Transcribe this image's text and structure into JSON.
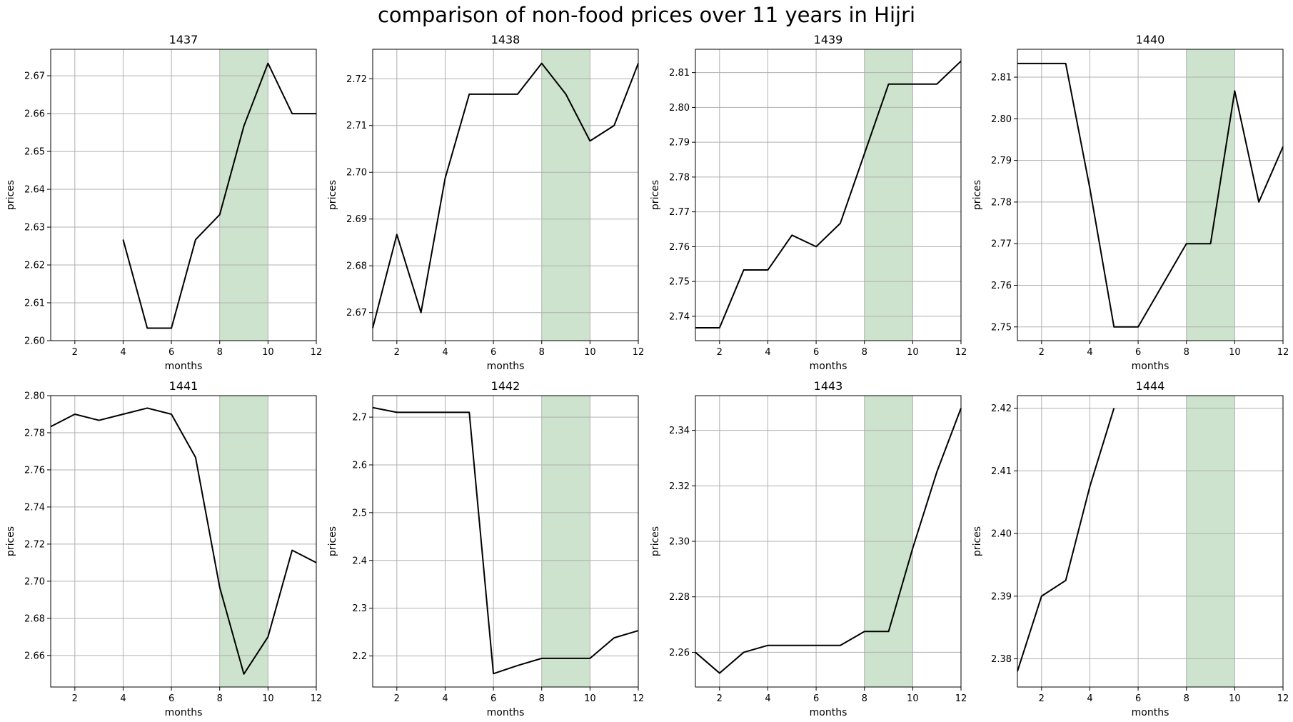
{
  "figure": {
    "title": "comparison of non-food prices over 11 years in Hijri",
    "line_color": "#000000",
    "highlight_color": "#2e8b2e",
    "grid_color": "#b0b0b0"
  },
  "chart_data": [
    {
      "type": "line",
      "title": "1437",
      "xlabel": "months",
      "ylabel": "prices",
      "xlim": [
        1,
        12
      ],
      "ylim": [
        2.6,
        2.677
      ],
      "xticks": [
        2,
        4,
        6,
        8,
        10,
        12
      ],
      "yticks": [
        2.6,
        2.61,
        2.62,
        2.63,
        2.64,
        2.65,
        2.66,
        2.67
      ],
      "ytick_labels": [
        "2.60",
        "2.61",
        "2.62",
        "2.63",
        "2.64",
        "2.65",
        "2.66",
        "2.67"
      ],
      "highlight": [
        8,
        10
      ],
      "grid": true,
      "x": [
        4,
        5,
        6,
        7,
        8,
        9,
        10,
        11,
        12
      ],
      "values": [
        2.6267,
        2.6033,
        2.6033,
        2.6267,
        2.6333,
        2.6567,
        2.6733,
        2.66,
        2.66
      ]
    },
    {
      "type": "line",
      "title": "1438",
      "xlabel": "months",
      "ylabel": "prices",
      "xlim": [
        1,
        12
      ],
      "ylim": [
        2.664,
        2.7263
      ],
      "xticks": [
        2,
        4,
        6,
        8,
        10,
        12
      ],
      "yticks": [
        2.67,
        2.68,
        2.69,
        2.7,
        2.71,
        2.72
      ],
      "ytick_labels": [
        "2.67",
        "2.68",
        "2.69",
        "2.70",
        "2.71",
        "2.72"
      ],
      "highlight": [
        8,
        10
      ],
      "grid": true,
      "x": [
        1,
        2,
        3,
        4,
        5,
        6,
        7,
        8,
        9,
        10,
        11,
        12
      ],
      "values": [
        2.6667,
        2.6867,
        2.67,
        2.6987,
        2.7167,
        2.7167,
        2.7167,
        2.7233,
        2.7167,
        2.7067,
        2.71,
        2.7233
      ]
    },
    {
      "type": "line",
      "title": "1439",
      "xlabel": "months",
      "ylabel": "prices",
      "xlim": [
        1,
        12
      ],
      "ylim": [
        2.733,
        2.8167
      ],
      "xticks": [
        2,
        4,
        6,
        8,
        10,
        12
      ],
      "yticks": [
        2.74,
        2.75,
        2.76,
        2.77,
        2.78,
        2.79,
        2.8,
        2.81
      ],
      "ytick_labels": [
        "2.74",
        "2.75",
        "2.76",
        "2.77",
        "2.78",
        "2.79",
        "2.80",
        "2.81"
      ],
      "highlight": [
        8,
        10
      ],
      "grid": true,
      "x": [
        1,
        2,
        3,
        4,
        5,
        6,
        7,
        8,
        9,
        10,
        11,
        12
      ],
      "values": [
        2.7367,
        2.7367,
        2.7533,
        2.7533,
        2.7633,
        2.76,
        2.7667,
        2.7867,
        2.8067,
        2.8067,
        2.8067,
        2.8133
      ]
    },
    {
      "type": "line",
      "title": "1440",
      "xlabel": "months",
      "ylabel": "prices",
      "xlim": [
        1,
        12
      ],
      "ylim": [
        2.7467,
        2.8167
      ],
      "xticks": [
        2,
        4,
        6,
        8,
        10,
        12
      ],
      "yticks": [
        2.75,
        2.76,
        2.77,
        2.78,
        2.79,
        2.8,
        2.81
      ],
      "ytick_labels": [
        "2.75",
        "2.76",
        "2.77",
        "2.78",
        "2.79",
        "2.80",
        "2.81"
      ],
      "highlight": [
        8,
        10
      ],
      "grid": true,
      "x": [
        1,
        2,
        3,
        4,
        5,
        6,
        7,
        8,
        9,
        10,
        11,
        12
      ],
      "values": [
        2.8133,
        2.8133,
        2.8133,
        2.7833,
        2.75,
        2.75,
        2.76,
        2.77,
        2.77,
        2.8067,
        2.78,
        2.7933
      ]
    },
    {
      "type": "line",
      "title": "1441",
      "xlabel": "months",
      "ylabel": "prices",
      "xlim": [
        1,
        12
      ],
      "ylim": [
        2.643,
        2.8
      ],
      "xticks": [
        2,
        4,
        6,
        8,
        10,
        12
      ],
      "yticks": [
        2.66,
        2.68,
        2.7,
        2.72,
        2.74,
        2.76,
        2.78,
        2.8
      ],
      "ytick_labels": [
        "2.66",
        "2.68",
        "2.70",
        "2.72",
        "2.74",
        "2.76",
        "2.78",
        "2.80"
      ],
      "highlight": [
        8,
        10
      ],
      "grid": true,
      "x": [
        1,
        2,
        3,
        4,
        5,
        6,
        7,
        8,
        9,
        10,
        11,
        12
      ],
      "values": [
        2.7833,
        2.79,
        2.7867,
        2.79,
        2.7933,
        2.79,
        2.7667,
        2.6967,
        2.65,
        2.67,
        2.7167,
        2.71
      ]
    },
    {
      "type": "line",
      "title": "1442",
      "xlabel": "months",
      "ylabel": "prices",
      "xlim": [
        1,
        12
      ],
      "ylim": [
        2.135,
        2.745
      ],
      "xticks": [
        2,
        4,
        6,
        8,
        10,
        12
      ],
      "yticks": [
        2.2,
        2.3,
        2.4,
        2.5,
        2.6,
        2.7
      ],
      "ytick_labels": [
        "2.2",
        "2.3",
        "2.4",
        "2.5",
        "2.6",
        "2.7"
      ],
      "highlight": [
        8,
        10
      ],
      "grid": true,
      "x": [
        1,
        2,
        3,
        4,
        5,
        6,
        7,
        8,
        9,
        10,
        11,
        12
      ],
      "values": [
        2.72,
        2.71,
        2.71,
        2.71,
        2.71,
        2.163,
        2.18,
        2.195,
        2.195,
        2.195,
        2.238,
        2.253
      ]
    },
    {
      "type": "line",
      "title": "1443",
      "xlabel": "months",
      "ylabel": "prices",
      "xlim": [
        1,
        12
      ],
      "ylim": [
        2.2475,
        2.3525
      ],
      "xticks": [
        2,
        4,
        6,
        8,
        10,
        12
      ],
      "yticks": [
        2.26,
        2.28,
        2.3,
        2.32,
        2.34
      ],
      "ytick_labels": [
        "2.26",
        "2.28",
        "2.30",
        "2.32",
        "2.34"
      ],
      "highlight": [
        8,
        10
      ],
      "grid": true,
      "x": [
        1,
        2,
        3,
        4,
        5,
        6,
        7,
        8,
        9,
        10,
        11,
        12
      ],
      "values": [
        2.26,
        2.2525,
        2.26,
        2.2625,
        2.2625,
        2.2625,
        2.2625,
        2.2675,
        2.2675,
        2.2975,
        2.325,
        2.348
      ]
    },
    {
      "type": "line",
      "title": "1444",
      "xlabel": "months",
      "ylabel": "prices",
      "xlim": [
        1,
        12
      ],
      "ylim": [
        2.3755,
        2.422
      ],
      "xticks": [
        2,
        4,
        6,
        8,
        10,
        12
      ],
      "yticks": [
        2.38,
        2.39,
        2.4,
        2.41,
        2.42
      ],
      "ytick_labels": [
        "2.38",
        "2.39",
        "2.40",
        "2.41",
        "2.42"
      ],
      "highlight": [
        8,
        10
      ],
      "grid": true,
      "x": [
        1,
        2,
        3,
        4,
        5
      ],
      "values": [
        2.378,
        2.39,
        2.3925,
        2.4075,
        2.42
      ]
    }
  ]
}
